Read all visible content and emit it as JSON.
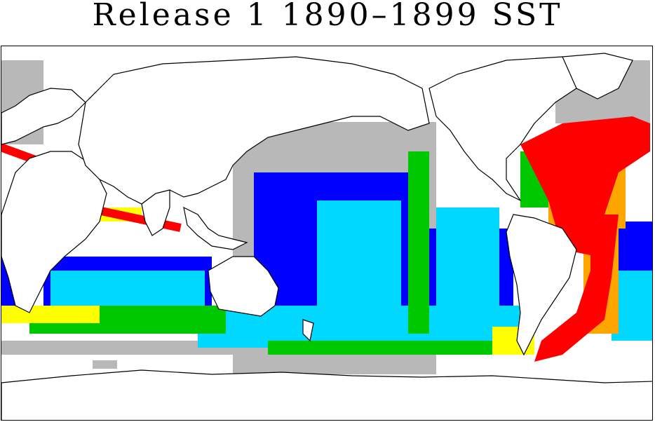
{
  "title": "Release 1 1890–1899 SST",
  "map": {
    "layer": "observation-density",
    "colors": {
      "gray": "#b8b8b8",
      "blue": "#0000ff",
      "cyan": "#00d8ff",
      "green": "#00c800",
      "yellow": "#ffff00",
      "orange": "#ffa500",
      "red": "#ff0000",
      "land_outline": "#000000"
    }
  }
}
